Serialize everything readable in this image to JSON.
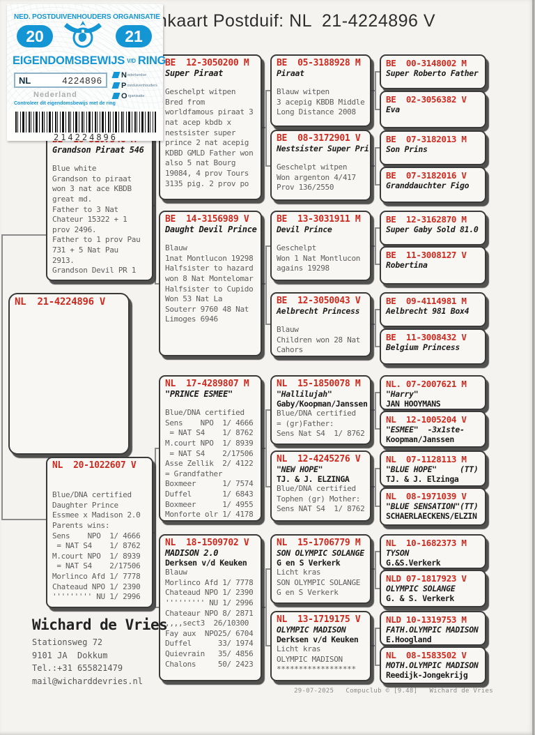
{
  "title": "mkaart Postduif: NL  21-4224896 V",
  "sticker": {
    "org": "NED. POSTDUIVENHOUDERS ORGANISATIE",
    "year_left": "20",
    "year_right": "21",
    "title_main": "EIGENDOMSBEWIJS",
    "title_vd": "V/D",
    "title_ring": "RING",
    "country_code": "NL",
    "ring_number": "4224896",
    "letters": [
      {
        "big": "N",
        "small": "ederlandse"
      },
      {
        "big": "P",
        "small": "ostduivenhouders"
      },
      {
        "big": "O",
        "small": "rganisatie"
      }
    ],
    "watermark": "Nederland",
    "note": "Controleer dit eigendomsbewijs met de ring",
    "barcode_text": "214224896"
  },
  "pedigree": {
    "subject": {
      "ring": "NL  21-4224896 V"
    },
    "parents": [
      {
        "ring": "BE  16-3107546 M",
        "name": "Grandson Piraat 546",
        "body": "Blue white\nGrandson to piraat\nwon 3 nat ace KBDB\ngreat md.\nFather to 3 Nat\nChateur 15322 + 1\nprov 2496.\nFather to 1 prov Pau\n731 + 5 Nat Pau\n2913.\nGrandson Devil PR 1"
      },
      {
        "ring": "NL  20-1022607 V",
        "body": "Blue/DNA certified\nDaughter Prince\nEssmee x Madison 2.0\nParents wins:\nSens    NPO  1/ 4666\n = NAT S4    1/ 8762\nM.court NPO  1/ 8939\n = NAT S4    2/17506\nMorlinco Afd 1/ 7778\nChateaud NPO 1/ 2390\n''''''''' NU 1/ 2996"
      }
    ],
    "grandparents": [
      {
        "ring": "BE  12-3050200 M",
        "name": "Super Piraat",
        "body": "Geschelpt witpen\nBred from\nworldfamous piraat 3\nnat acep kbdb x\nnestsister super\nprince 2 nat acepig\nKDBD GMLD Father won\nalso 5 nat Bourg\n19084, 4 prov Tours\n3135 pig. 2 prov po"
      },
      {
        "ring": "BE  14-3156989 V",
        "name": "Daught Devil Prince",
        "body": "Blauw\n1nat Montlucon 19298\nHalfsister to hazard\nwon 8 Nat Montelomar\nHalfsister to Cupido\nWon 53 Nat La\nSouterr 9760 48 Nat\nLimoges 6946"
      },
      {
        "ring": "NL  17-4289807 M",
        "name": "\"PRINCE ESMEE\"",
        "body": "Blue/DNA certified\nSens    NPO  1/ 4666\n = NAT S4    1/ 8762\nM.court NPO  1/ 8939\n = NAT S4    2/17506\nAsse Zellik  2/ 4122\n= Grandfather\nBoxmeer      1/ 7574\nDuffel       1/ 6843\nBoxmeer      1/ 4955\nMonforte olr 1/ 4178"
      },
      {
        "ring": "NL  18-1509702 V",
        "name": "MADISON 2.0",
        "sub": "Derksen v/d Keuken",
        "body": "Blauw\nMorlinco Afd 1/ 7778\nChateaud NPO 1/ 2390\n''''''''' NU 1/ 2996\nChateaur NPO 8/ 2871\n,,,,sect3  26/10300\nFay aux  NPO25/ 6704\nDuffel      33/ 1974\nQuievrain   35/ 4856\nChalons     50/ 2423"
      }
    ],
    "great_grandparents": [
      {
        "ring": "BE  05-3188928 M",
        "name": "Piraat",
        "body": "Blauw witpen\n3 acepig KBDB Middle\nLong Distance 2008"
      },
      {
        "ring": "BE  08-3172901 V",
        "name": "Nestsister Super Pri",
        "body": "Geschelpt witpen\nWon argenton 4/417\nProv 136/2550"
      },
      {
        "ring": "BE  13-3031911 M",
        "name": "Devil Prince",
        "body": "Geschelpt\nWon 1 Nat Montlucon\nagains 19298"
      },
      {
        "ring": "BE  12-3050043 V",
        "name": "Aelbrecht Princess",
        "body": "Blauw\nChildren won 28 Nat\nCahors"
      },
      {
        "ring": "NL  15-1850078 M",
        "name": "\"Hallilujah\"",
        "sub": "Gaby/Koopman/Janssen",
        "body": "Blue/DNA certified\n= (gr)Father:\nSens Nat S4  1/ 8762"
      },
      {
        "ring": "NL  12-4245276 V",
        "name": "\"NEW HOPE\"",
        "sub": "TJ. & J. ELZINGA",
        "body": "Blue/DNA certified\nTophen (gr) Mother:\nSens NAT S4  1/ 8762"
      },
      {
        "ring": "NL  15-1706779 M",
        "name": "SON OLYMPIC SOLANGE",
        "sub": "G en S Verkerk",
        "body": "Licht kras\nSON OLYMPIC SOLANGE\nG en S Verkerk"
      },
      {
        "ring": "NL  13-1719175 V",
        "name": "OLYMPIC MADISON",
        "sub": "Derksen v/d Keuken",
        "body": "Licht kras\nOLYMPIC MADISON\n******************"
      }
    ],
    "gg_grandparents": [
      {
        "ring": "BE  00-3148002 M",
        "name": "Super Roberto Father"
      },
      {
        "ring": "BE  02-3056382 V",
        "name": "Eva"
      },
      {
        "ring": "BE  07-3182013 M",
        "name": "Son Prins"
      },
      {
        "ring": "BE  07-3182016 V",
        "name": "Granddauchter Figo"
      },
      {
        "ring": "BE  12-3162870 M",
        "name": "Super Gaby Sold 81.0"
      },
      {
        "ring": "BE  11-3008127 V",
        "name": "Robertina"
      },
      {
        "ring": "BE  09-4114981 M",
        "name": "Aelbrecht 981 Box4"
      },
      {
        "ring": "BE  11-3008432 V",
        "name": "Belgium Princess"
      },
      {
        "ring": "NL. 07-2007621 M",
        "name": "\"Harry\"",
        "sub": "JAN HOOYMANS"
      },
      {
        "ring": "NL  12-1005204 V",
        "name": "\"ESMEE\"  -3x1ste-",
        "sub": "Koopman/Janssen"
      },
      {
        "ring": "NL  07-1128113 M",
        "name": "\"BLUE HOPE\"     (TT)",
        "sub": "TJ. & J. Elzinga"
      },
      {
        "ring": "NL  08-1971039 V",
        "name": "\"BLUE SENSATION\"(TT)",
        "sub": "SCHAERLAECKENS/ELZIN"
      },
      {
        "ring": "NL  10-1682373 M",
        "name": "TYSON",
        "sub": "G.&S.Verkerk"
      },
      {
        "ring": "NLD 07-1817923 V",
        "name": "OLYMPIC SOLANGE",
        "sub": "G. & S. Verkerk"
      },
      {
        "ring": "NLD 10-1319753 M",
        "name": "FATH.OLYMPIC MADISON",
        "sub": "E.Hoogland"
      },
      {
        "ring": "NL  08-1583502 V",
        "name": "MOTH.OLYMPIC MADISON",
        "sub": "Reedijk-Jongekrijg"
      }
    ]
  },
  "breeder": {
    "name": "Wichard de Vries",
    "lines": "Stationsweg 72\n9101 JA  Dokkum\nTel.:+31 655821479\nmail@wicharddevries.nl"
  },
  "footer": "29-07-2025   Compuclub © [9.48]   Wichard de Vries"
}
